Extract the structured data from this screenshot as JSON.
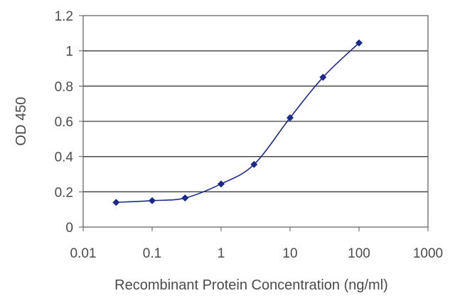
{
  "chart_data": {
    "type": "line",
    "title": "",
    "xlabel": "Recombinant Protein Concentration (ng/ml)",
    "ylabel": "OD 450",
    "x_scale": "log",
    "xlim": [
      0.01,
      1000
    ],
    "ylim": [
      0,
      1.2
    ],
    "x_ticks": [
      0.01,
      0.1,
      1,
      10,
      100,
      1000
    ],
    "x_tick_labels": [
      "0.01",
      "0.1",
      "1",
      "10",
      "100",
      "1000"
    ],
    "y_ticks": [
      0,
      0.2,
      0.4,
      0.6,
      0.8,
      1,
      1.2
    ],
    "y_tick_labels": [
      "0",
      "0.2",
      "0.4",
      "0.6",
      "0.8",
      "1",
      "1.2"
    ],
    "grid": "horizontal",
    "legend": "none",
    "series": [
      {
        "x": [
          0.03,
          0.1,
          0.3,
          1,
          3,
          10,
          30,
          100
        ],
        "y": [
          0.14,
          0.15,
          0.165,
          0.245,
          0.355,
          0.62,
          0.85,
          1.045
        ],
        "color": "#1a2a8c"
      }
    ]
  }
}
